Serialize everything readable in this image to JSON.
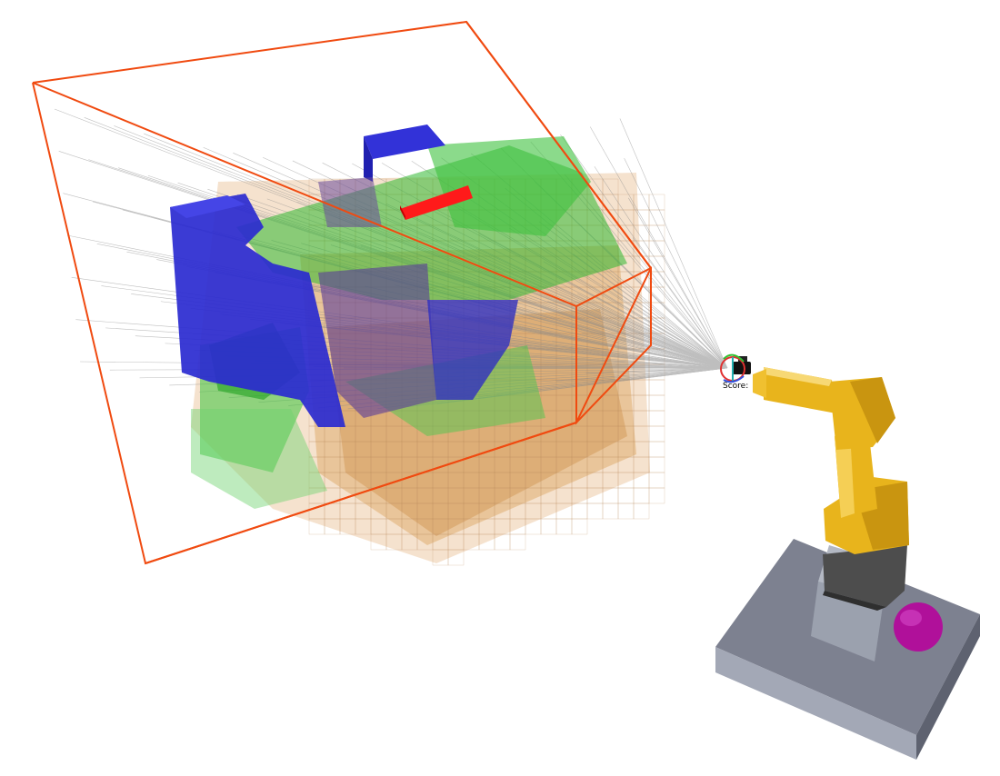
{
  "viewer": {
    "score_label": "Score:",
    "colors": {
      "frustum": "#f04a10",
      "occupied_voxel": "#2a2ad0",
      "frontier_voxel": "#35c835",
      "unknown_voxel": "#d08a30",
      "target_voxel": "#ff1a1a",
      "ray": "#888888",
      "robot_arm": "#e8b41c",
      "robot_joint": "#4a4a4a",
      "base_plate": "#7d8190",
      "pedestal": "#9aa0ad",
      "sphere": "#b0109a"
    },
    "icons": [
      "camera-icon",
      "gizmo-icon"
    ]
  }
}
